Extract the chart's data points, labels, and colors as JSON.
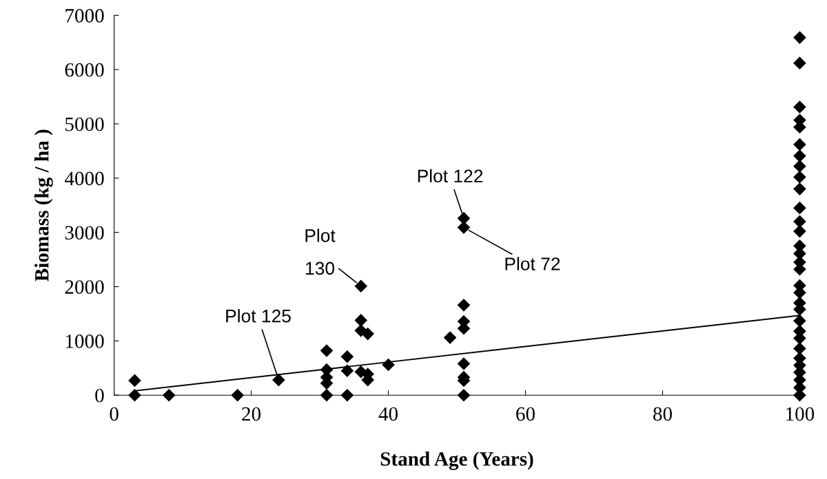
{
  "chart_data": {
    "type": "scatter",
    "xlabel": "Stand Age (Years)",
    "ylabel": "Biomass (kg / ha )",
    "series": [
      {
        "color": "#000000",
        "marker": "diamond",
        "x": [
          3,
          3,
          8,
          18,
          24,
          31,
          31,
          31,
          31,
          31,
          34,
          34,
          34,
          36,
          36,
          36,
          36,
          37,
          37,
          37,
          40,
          49,
          51,
          51,
          51,
          51,
          51,
          51,
          51,
          51,
          51,
          100,
          100,
          100,
          100,
          100,
          100,
          100,
          100,
          100,
          100,
          100,
          100,
          100,
          100,
          100,
          100,
          100,
          100,
          100,
          100,
          100,
          100,
          100,
          100,
          100,
          100,
          100,
          100,
          100,
          100,
          100
        ],
        "values": [
          270,
          0,
          0,
          0,
          280,
          820,
          470,
          330,
          220,
          0,
          710,
          450,
          0,
          2010,
          1380,
          1190,
          430,
          1130,
          390,
          280,
          560,
          1060,
          3260,
          3090,
          1660,
          1360,
          1230,
          580,
          330,
          270,
          0,
          6590,
          6120,
          5310,
          5070,
          4940,
          4620,
          4410,
          4220,
          4020,
          3800,
          3450,
          3200,
          3020,
          2750,
          2610,
          2450,
          2320,
          2020,
          1890,
          1700,
          1580,
          1370,
          1180,
          1050,
          860,
          680,
          550,
          420,
          280,
          140,
          0
        ]
      },
      {
        "type": "line",
        "color": "#000000",
        "marker": "none",
        "x": [
          3,
          100
        ],
        "values": [
          80,
          1470
        ]
      }
    ],
    "annotations": [
      {
        "text": "Plot 122",
        "x": 51,
        "y": 3260
      },
      {
        "text": "Plot 72",
        "x": 51,
        "y": 3090
      },
      {
        "text": "Plot\n130",
        "x": 36,
        "y": 2010
      },
      {
        "text": "Plot 125",
        "x": 24,
        "y": 280
      }
    ],
    "xlim": [
      0,
      100
    ],
    "xticks": [
      0,
      20,
      40,
      60,
      80,
      100
    ],
    "ylim": [
      0,
      7000
    ],
    "yticks": [
      0,
      1000,
      2000,
      3000,
      4000,
      5000,
      6000,
      7000
    ],
    "grid": false,
    "legend": false
  }
}
